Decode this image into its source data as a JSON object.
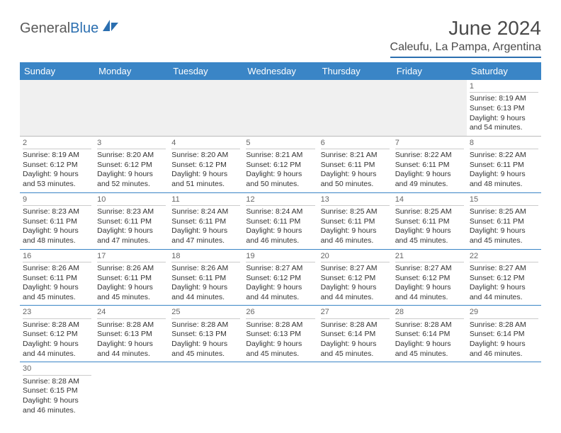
{
  "logo": {
    "part1": "General",
    "part2": "Blue"
  },
  "title": "June 2024",
  "location": "Caleufu, La Pampa, Argentina",
  "colors": {
    "header_bg": "#3a85c6",
    "header_text": "#ffffff",
    "border": "#2b6fb0",
    "logo_gray": "#5a5a5a",
    "logo_blue": "#2b6fb0"
  },
  "weekdays": [
    "Sunday",
    "Monday",
    "Tuesday",
    "Wednesday",
    "Thursday",
    "Friday",
    "Saturday"
  ],
  "weeks": [
    [
      null,
      null,
      null,
      null,
      null,
      null,
      {
        "day": "1",
        "sunrise": "8:19 AM",
        "sunset": "6:13 PM",
        "daylight": "9 hours and 54 minutes."
      }
    ],
    [
      {
        "day": "2",
        "sunrise": "8:19 AM",
        "sunset": "6:12 PM",
        "daylight": "9 hours and 53 minutes."
      },
      {
        "day": "3",
        "sunrise": "8:20 AM",
        "sunset": "6:12 PM",
        "daylight": "9 hours and 52 minutes."
      },
      {
        "day": "4",
        "sunrise": "8:20 AM",
        "sunset": "6:12 PM",
        "daylight": "9 hours and 51 minutes."
      },
      {
        "day": "5",
        "sunrise": "8:21 AM",
        "sunset": "6:12 PM",
        "daylight": "9 hours and 50 minutes."
      },
      {
        "day": "6",
        "sunrise": "8:21 AM",
        "sunset": "6:11 PM",
        "daylight": "9 hours and 50 minutes."
      },
      {
        "day": "7",
        "sunrise": "8:22 AM",
        "sunset": "6:11 PM",
        "daylight": "9 hours and 49 minutes."
      },
      {
        "day": "8",
        "sunrise": "8:22 AM",
        "sunset": "6:11 PM",
        "daylight": "9 hours and 48 minutes."
      }
    ],
    [
      {
        "day": "9",
        "sunrise": "8:23 AM",
        "sunset": "6:11 PM",
        "daylight": "9 hours and 48 minutes."
      },
      {
        "day": "10",
        "sunrise": "8:23 AM",
        "sunset": "6:11 PM",
        "daylight": "9 hours and 47 minutes."
      },
      {
        "day": "11",
        "sunrise": "8:24 AM",
        "sunset": "6:11 PM",
        "daylight": "9 hours and 47 minutes."
      },
      {
        "day": "12",
        "sunrise": "8:24 AM",
        "sunset": "6:11 PM",
        "daylight": "9 hours and 46 minutes."
      },
      {
        "day": "13",
        "sunrise": "8:25 AM",
        "sunset": "6:11 PM",
        "daylight": "9 hours and 46 minutes."
      },
      {
        "day": "14",
        "sunrise": "8:25 AM",
        "sunset": "6:11 PM",
        "daylight": "9 hours and 45 minutes."
      },
      {
        "day": "15",
        "sunrise": "8:25 AM",
        "sunset": "6:11 PM",
        "daylight": "9 hours and 45 minutes."
      }
    ],
    [
      {
        "day": "16",
        "sunrise": "8:26 AM",
        "sunset": "6:11 PM",
        "daylight": "9 hours and 45 minutes."
      },
      {
        "day": "17",
        "sunrise": "8:26 AM",
        "sunset": "6:11 PM",
        "daylight": "9 hours and 45 minutes."
      },
      {
        "day": "18",
        "sunrise": "8:26 AM",
        "sunset": "6:11 PM",
        "daylight": "9 hours and 44 minutes."
      },
      {
        "day": "19",
        "sunrise": "8:27 AM",
        "sunset": "6:12 PM",
        "daylight": "9 hours and 44 minutes."
      },
      {
        "day": "20",
        "sunrise": "8:27 AM",
        "sunset": "6:12 PM",
        "daylight": "9 hours and 44 minutes."
      },
      {
        "day": "21",
        "sunrise": "8:27 AM",
        "sunset": "6:12 PM",
        "daylight": "9 hours and 44 minutes."
      },
      {
        "day": "22",
        "sunrise": "8:27 AM",
        "sunset": "6:12 PM",
        "daylight": "9 hours and 44 minutes."
      }
    ],
    [
      {
        "day": "23",
        "sunrise": "8:28 AM",
        "sunset": "6:12 PM",
        "daylight": "9 hours and 44 minutes."
      },
      {
        "day": "24",
        "sunrise": "8:28 AM",
        "sunset": "6:13 PM",
        "daylight": "9 hours and 44 minutes."
      },
      {
        "day": "25",
        "sunrise": "8:28 AM",
        "sunset": "6:13 PM",
        "daylight": "9 hours and 45 minutes."
      },
      {
        "day": "26",
        "sunrise": "8:28 AM",
        "sunset": "6:13 PM",
        "daylight": "9 hours and 45 minutes."
      },
      {
        "day": "27",
        "sunrise": "8:28 AM",
        "sunset": "6:14 PM",
        "daylight": "9 hours and 45 minutes."
      },
      {
        "day": "28",
        "sunrise": "8:28 AM",
        "sunset": "6:14 PM",
        "daylight": "9 hours and 45 minutes."
      },
      {
        "day": "29",
        "sunrise": "8:28 AM",
        "sunset": "6:14 PM",
        "daylight": "9 hours and 46 minutes."
      }
    ],
    [
      {
        "day": "30",
        "sunrise": "8:28 AM",
        "sunset": "6:15 PM",
        "daylight": "9 hours and 46 minutes."
      },
      null,
      null,
      null,
      null,
      null,
      null
    ]
  ],
  "labels": {
    "sunrise": "Sunrise: ",
    "sunset": "Sunset: ",
    "daylight": "Daylight: "
  }
}
